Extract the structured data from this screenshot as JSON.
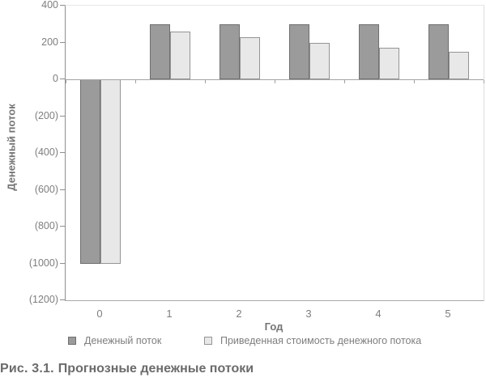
{
  "chart_data": {
    "type": "bar",
    "title": "",
    "categories": [
      "0",
      "1",
      "2",
      "3",
      "4",
      "5"
    ],
    "series": [
      {
        "name": "Денежный поток",
        "values": [
          -1000,
          300,
          300,
          300,
          300,
          300
        ],
        "fill": "#9b9b9b",
        "border": "#6f6f6f"
      },
      {
        "name": "Приведенная стоимость денежного потока",
        "values": [
          -1000,
          261,
          227,
          197,
          171,
          149
        ],
        "fill": "#e8e8e8",
        "border": "#949494"
      }
    ],
    "xlabel": "Год",
    "ylabel": "Денежный поток",
    "ylim": [
      -1200,
      400
    ],
    "ytick_step": 200,
    "ytick_labels": [
      "400",
      "200",
      "0",
      "(200)",
      "(400)",
      "(600)",
      "(800)",
      "(1000)",
      "(1200)"
    ],
    "grid": false,
    "legend_position": "bottom",
    "axis_color": "#a2a2a2",
    "text_color": "#7e7e7e"
  },
  "caption": {
    "prefix": "Рис. 3.1.",
    "text": "Прогнозные денежные потоки"
  }
}
